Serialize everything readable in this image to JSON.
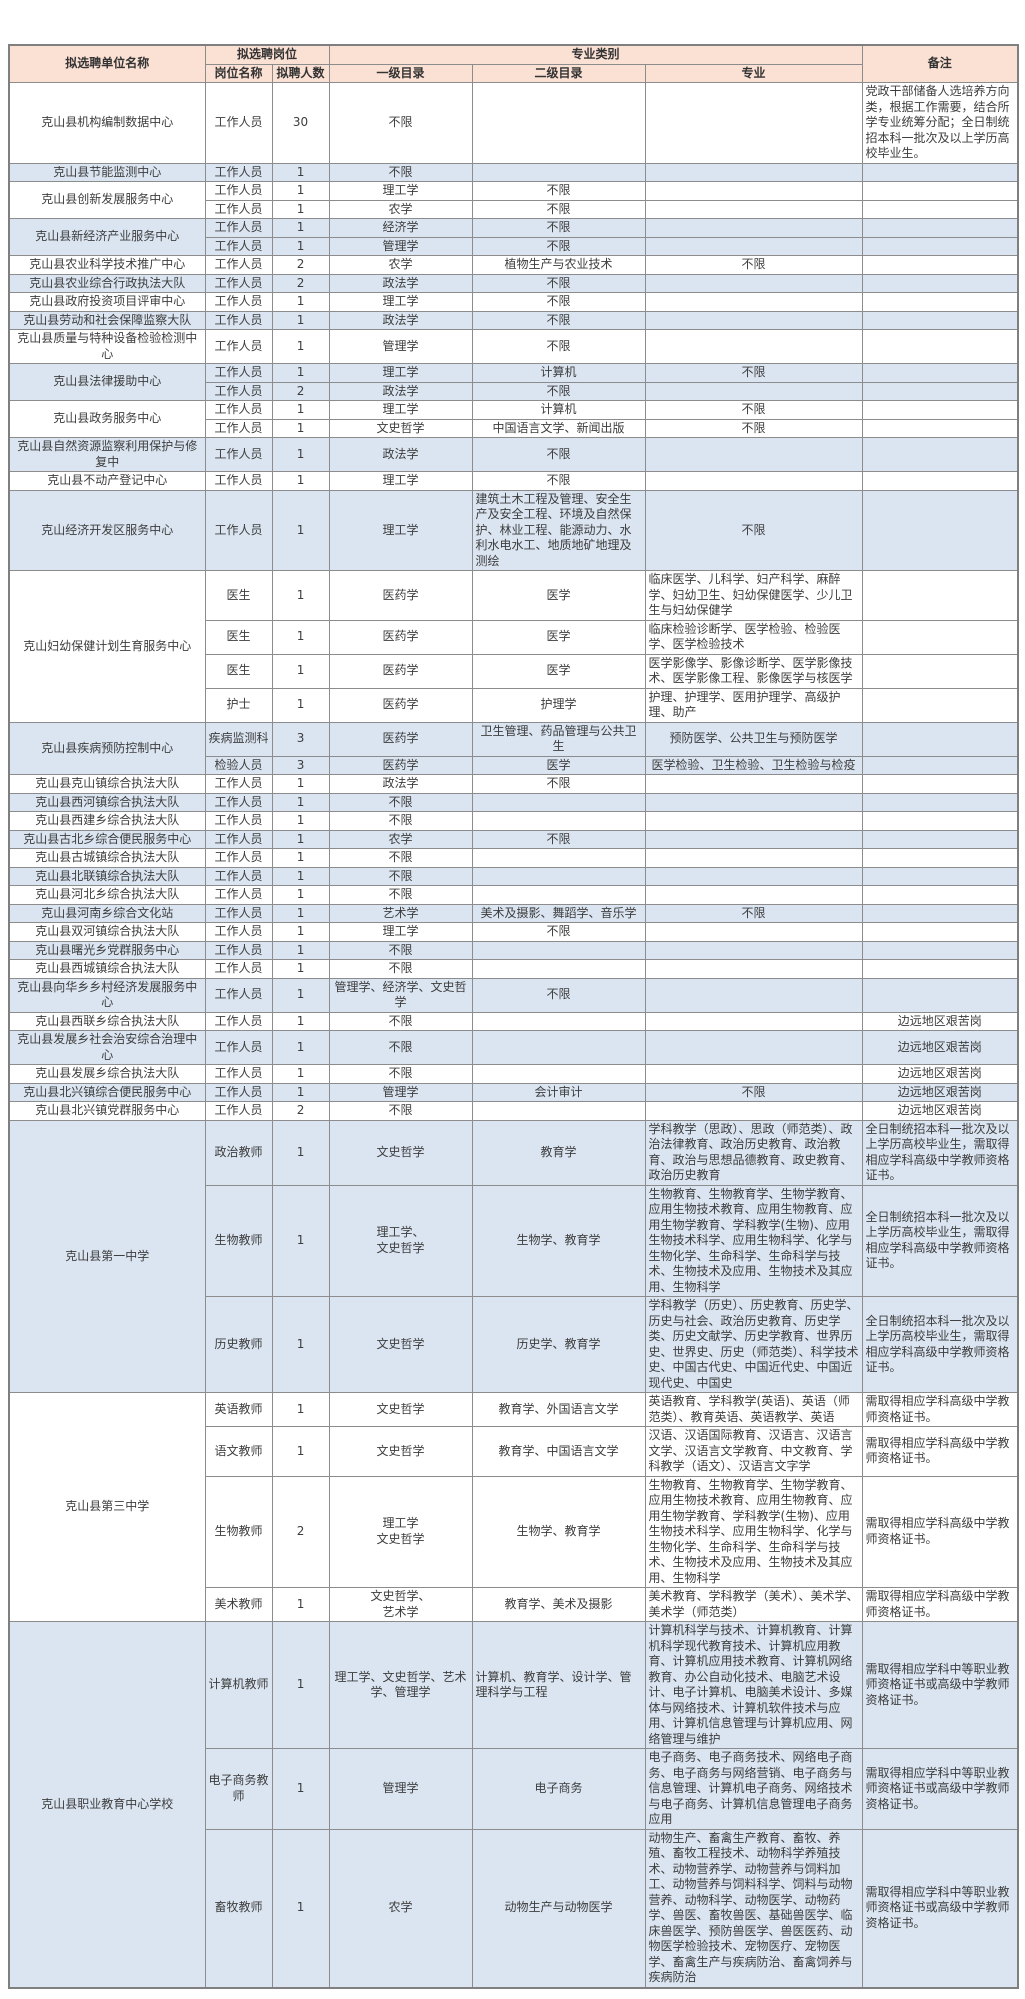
{
  "header": {
    "unit": "拟选聘单位名称",
    "position_group": "拟选聘岗位",
    "position_name": "岗位名称",
    "count": "拟聘人数",
    "major_group": "专业类别",
    "cat1": "一级目录",
    "cat2": "二级目录",
    "major": "专业",
    "remark": "备注"
  },
  "colors": {
    "header_bg": "#fbe0d4",
    "row_blue": "#dbe5f1",
    "row_white": "#ffffff",
    "border": "#8c8c8c",
    "text": "#3d3d3d"
  },
  "groups": [
    {
      "unit": "克山县机构编制数据中心",
      "shade": "white",
      "rows": [
        {
          "position": "工作人员",
          "count": "30",
          "cat1": "不限",
          "cat2": "",
          "major": "",
          "remark": "党政干部储备人选培养方向类，根据工作需要，结合所学专业统筹分配；全日制统招本科一批次及以上学历高校毕业生。"
        }
      ]
    },
    {
      "unit": "克山县节能监测中心",
      "shade": "blue",
      "rows": [
        {
          "position": "工作人员",
          "count": "1",
          "cat1": "不限",
          "cat2": "",
          "major": "",
          "remark": ""
        }
      ]
    },
    {
      "unit": "克山县创新发展服务中心",
      "shade": "white",
      "rows": [
        {
          "position": "工作人员",
          "count": "1",
          "cat1": "理工学",
          "cat2": "不限",
          "major": "",
          "remark": ""
        },
        {
          "position": "工作人员",
          "count": "1",
          "cat1": "农学",
          "cat2": "不限",
          "major": "",
          "remark": ""
        }
      ]
    },
    {
      "unit": "克山县新经济产业服务中心",
      "shade": "blue",
      "rows": [
        {
          "position": "工作人员",
          "count": "1",
          "cat1": "经济学",
          "cat2": "不限",
          "major": "",
          "remark": ""
        },
        {
          "position": "工作人员",
          "count": "1",
          "cat1": "管理学",
          "cat2": "不限",
          "major": "",
          "remark": ""
        }
      ]
    },
    {
      "unit": "克山县农业科学技术推广中心",
      "shade": "white",
      "rows": [
        {
          "position": "工作人员",
          "count": "2",
          "cat1": "农学",
          "cat2": "植物生产与农业技术",
          "major": "不限",
          "remark": ""
        }
      ]
    },
    {
      "unit": "克山县农业综合行政执法大队",
      "shade": "blue",
      "rows": [
        {
          "position": "工作人员",
          "count": "2",
          "cat1": "政法学",
          "cat2": "不限",
          "major": "",
          "remark": ""
        }
      ]
    },
    {
      "unit": "克山县政府投资项目评审中心",
      "shade": "white",
      "rows": [
        {
          "position": "工作人员",
          "count": "1",
          "cat1": "理工学",
          "cat2": "不限",
          "major": "",
          "remark": ""
        }
      ]
    },
    {
      "unit": "克山县劳动和社会保障监察大队",
      "shade": "blue",
      "rows": [
        {
          "position": "工作人员",
          "count": "1",
          "cat1": "政法学",
          "cat2": "不限",
          "major": "",
          "remark": ""
        }
      ]
    },
    {
      "unit": "克山县质量与特种设备检验检测中心",
      "shade": "white",
      "rows": [
        {
          "position": "工作人员",
          "count": "1",
          "cat1": "管理学",
          "cat2": "不限",
          "major": "",
          "remark": ""
        }
      ]
    },
    {
      "unit": "克山县法律援助中心",
      "shade": "blue",
      "rows": [
        {
          "position": "工作人员",
          "count": "1",
          "cat1": "理工学",
          "cat2": "计算机",
          "major": "不限",
          "remark": ""
        },
        {
          "position": "工作人员",
          "count": "2",
          "cat1": "政法学",
          "cat2": "不限",
          "major": "",
          "remark": ""
        }
      ]
    },
    {
      "unit": "克山县政务服务中心",
      "shade": "white",
      "rows": [
        {
          "position": "工作人员",
          "count": "1",
          "cat1": "理工学",
          "cat2": "计算机",
          "major": "不限",
          "remark": ""
        },
        {
          "position": "工作人员",
          "count": "1",
          "cat1": "文史哲学",
          "cat2": "中国语言文学、新闻出版",
          "major": "不限",
          "remark": ""
        }
      ]
    },
    {
      "unit": "克山县自然资源监察利用保护与修复中",
      "shade": "blue",
      "rows": [
        {
          "position": "工作人员",
          "count": "1",
          "cat1": "政法学",
          "cat2": "不限",
          "major": "",
          "remark": ""
        }
      ]
    },
    {
      "unit": "克山县不动产登记中心",
      "shade": "white",
      "rows": [
        {
          "position": "工作人员",
          "count": "1",
          "cat1": "理工学",
          "cat2": "不限",
          "major": "",
          "remark": ""
        }
      ]
    },
    {
      "unit": "克山经济开发区服务中心",
      "shade": "blue",
      "rows": [
        {
          "position": "工作人员",
          "count": "1",
          "cat1": "理工学",
          "cat2": "建筑土木工程及管理、安全生产及安全工程、环境及自然保护、林业工程、能源动力、水利水电水工、地质地矿地理及测绘",
          "major": "不限",
          "remark": ""
        }
      ]
    },
    {
      "unit": "克山妇幼保健计划生育服务中心",
      "shade": "white",
      "rows": [
        {
          "position": "医生",
          "count": "1",
          "cat1": "医药学",
          "cat2": "医学",
          "major": "临床医学、儿科学、妇产科学、麻醉学、妇幼卫生、妇幼保健医学、少儿卫生与妇幼保健学",
          "remark": ""
        },
        {
          "position": "医生",
          "count": "1",
          "cat1": "医药学",
          "cat2": "医学",
          "major": "临床检验诊断学、医学检验、检验医学、医学检验技术",
          "remark": ""
        },
        {
          "position": "医生",
          "count": "1",
          "cat1": "医药学",
          "cat2": "医学",
          "major": "医学影像学、影像诊断学、医学影像技术、医学影像工程、影像医学与核医学",
          "remark": ""
        },
        {
          "position": "护士",
          "count": "1",
          "cat1": "医药学",
          "cat2": "护理学",
          "major": "护理、护理学、医用护理学、高级护理、助产",
          "remark": ""
        }
      ]
    },
    {
      "unit": "克山县疾病预防控制中心",
      "shade": "blue",
      "rows": [
        {
          "position": "疾病监测科",
          "count": "3",
          "cat1": "医药学",
          "cat2": "卫生管理、药品管理与公共卫生",
          "major": "预防医学、公共卫生与预防医学",
          "remark": ""
        },
        {
          "position": "检验人员",
          "count": "3",
          "cat1": "医药学",
          "cat2": "医学",
          "major": "医学检验、卫生检验、卫生检验与检疫",
          "remark": ""
        }
      ]
    },
    {
      "unit": "克山县克山镇综合执法大队",
      "shade": "white",
      "rows": [
        {
          "position": "工作人员",
          "count": "1",
          "cat1": "政法学",
          "cat2": "不限",
          "major": "",
          "remark": ""
        }
      ]
    },
    {
      "unit": "克山县西河镇综合执法大队",
      "shade": "blue",
      "rows": [
        {
          "position": "工作人员",
          "count": "1",
          "cat1": "不限",
          "cat2": "",
          "major": "",
          "remark": ""
        }
      ]
    },
    {
      "unit": "克山县西建乡综合执法大队",
      "shade": "white",
      "rows": [
        {
          "position": "工作人员",
          "count": "1",
          "cat1": "不限",
          "cat2": "",
          "major": "",
          "remark": ""
        }
      ]
    },
    {
      "unit": "克山县古北乡综合便民服务中心",
      "shade": "blue",
      "rows": [
        {
          "position": "工作人员",
          "count": "1",
          "cat1": "农学",
          "cat2": "不限",
          "major": "",
          "remark": ""
        }
      ]
    },
    {
      "unit": "克山县古城镇综合执法大队",
      "shade": "white",
      "rows": [
        {
          "position": "工作人员",
          "count": "1",
          "cat1": "不限",
          "cat2": "",
          "major": "",
          "remark": ""
        }
      ]
    },
    {
      "unit": "克山县北联镇综合执法大队",
      "shade": "blue",
      "rows": [
        {
          "position": "工作人员",
          "count": "1",
          "cat1": "不限",
          "cat2": "",
          "major": "",
          "remark": ""
        }
      ]
    },
    {
      "unit": "克山县河北乡综合执法大队",
      "shade": "white",
      "rows": [
        {
          "position": "工作人员",
          "count": "1",
          "cat1": "不限",
          "cat2": "",
          "major": "",
          "remark": ""
        }
      ]
    },
    {
      "unit": "克山县河南乡综合文化站",
      "shade": "blue",
      "rows": [
        {
          "position": "工作人员",
          "count": "1",
          "cat1": "艺术学",
          "cat2": "美术及摄影、舞蹈学、音乐学",
          "major": "不限",
          "remark": ""
        }
      ]
    },
    {
      "unit": "克山县双河镇综合执法大队",
      "shade": "white",
      "rows": [
        {
          "position": "工作人员",
          "count": "1",
          "cat1": "理工学",
          "cat2": "不限",
          "major": "",
          "remark": ""
        }
      ]
    },
    {
      "unit": "克山县曙光乡党群服务中心",
      "shade": "blue",
      "rows": [
        {
          "position": "工作人员",
          "count": "1",
          "cat1": "不限",
          "cat2": "",
          "major": "",
          "remark": ""
        }
      ]
    },
    {
      "unit": "克山县西城镇综合执法大队",
      "shade": "white",
      "rows": [
        {
          "position": "工作人员",
          "count": "1",
          "cat1": "不限",
          "cat2": "",
          "major": "",
          "remark": ""
        }
      ]
    },
    {
      "unit": "克山县向华乡乡村经济发展服务中心",
      "shade": "blue",
      "rows": [
        {
          "position": "工作人员",
          "count": "1",
          "cat1": "管理学、经济学、文史哲学",
          "cat2": "不限",
          "major": "",
          "remark": ""
        }
      ]
    },
    {
      "unit": "克山县西联乡综合执法大队",
      "shade": "white",
      "rows": [
        {
          "position": "工作人员",
          "count": "1",
          "cat1": "不限",
          "cat2": "",
          "major": "",
          "remark": "边远地区艰苦岗"
        }
      ]
    },
    {
      "unit": "克山县发展乡社会治安综合治理中心",
      "shade": "blue",
      "rows": [
        {
          "position": "工作人员",
          "count": "1",
          "cat1": "不限",
          "cat2": "",
          "major": "",
          "remark": "边远地区艰苦岗"
        }
      ]
    },
    {
      "unit": "克山县发展乡综合执法大队",
      "shade": "white",
      "rows": [
        {
          "position": "工作人员",
          "count": "1",
          "cat1": "不限",
          "cat2": "",
          "major": "",
          "remark": "边远地区艰苦岗"
        }
      ]
    },
    {
      "unit": "克山县北兴镇综合便民服务中心",
      "shade": "blue",
      "rows": [
        {
          "position": "工作人员",
          "count": "1",
          "cat1": "管理学",
          "cat2": "会计审计",
          "major": "不限",
          "remark": "边远地区艰苦岗"
        }
      ]
    },
    {
      "unit": "克山县北兴镇党群服务中心",
      "shade": "white",
      "rows": [
        {
          "position": "工作人员",
          "count": "2",
          "cat1": "不限",
          "cat2": "",
          "major": "",
          "remark": "边远地区艰苦岗"
        }
      ]
    },
    {
      "unit": "克山县第一中学",
      "shade": "blue",
      "rows": [
        {
          "position": "政治教师",
          "count": "1",
          "cat1": "文史哲学",
          "cat2": "教育学",
          "major": "学科教学（思政）、思政（师范类）、政治法律教育、政治历史教育、政治教育、政治与思想品德教育、政史教育、政治历史教育",
          "remark": "全日制统招本科一批次及以上学历高校毕业生，需取得相应学科高级中学教师资格证书。"
        },
        {
          "position": "生物教师",
          "count": "1",
          "cat1": "理工学、\n文史哲学",
          "cat2": "生物学、教育学",
          "major": "生物教育、生物教育学、生物学教育、应用生物技术教育、应用生物教育、应用生物学教育、学科教学(生物)、应用生物技术科学、应用生物科学、化学与生物化学、生命科学、生命科学与技术、生物技术及应用、生物技术及其应用、生物科学",
          "remark": "全日制统招本科一批次及以上学历高校毕业生，需取得相应学科高级中学教师资格证书。"
        },
        {
          "position": "历史教师",
          "count": "1",
          "cat1": "文史哲学",
          "cat2": "历史学、教育学",
          "major": "学科教学（历史）、历史教育、历史学、历史与社会、政治历史教育、历史学类、历史文献学、历史学教育、世界历史、世界史、历史（师范类）、科学技术史、中国古代史、中国近代史、中国近现代史、中国史",
          "remark": "全日制统招本科一批次及以上学历高校毕业生，需取得相应学科高级中学教师资格证书。"
        }
      ]
    },
    {
      "unit": "克山县第三中学",
      "shade": "white",
      "rows": [
        {
          "position": "英语教师",
          "count": "1",
          "cat1": "文史哲学",
          "cat2": "教育学、外国语言文学",
          "major": "英语教育、学科教学(英语)、英语（师范类）、教育英语、英语教学、英语",
          "remark": "需取得相应学科高级中学教师资格证书。"
        },
        {
          "position": "语文教师",
          "count": "1",
          "cat1": "文史哲学",
          "cat2": "教育学、中国语言文学",
          "major": "汉语、汉语国际教育、汉语言、汉语言文学、汉语言文学教育、中文教育、学科教学（语文）、汉语言文字学",
          "remark": "需取得相应学科高级中学教师资格证书。"
        },
        {
          "position": "生物教师",
          "count": "2",
          "cat1": "理工学\n文史哲学",
          "cat2": "生物学、教育学",
          "major": "生物教育、生物教育学、生物学教育、应用生物技术教育、应用生物教育、应用生物学教育、学科教学(生物)、应用生物技术科学、应用生物科学、化学与生物化学、生命科学、生命科学与技术、生物技术及应用、生物技术及其应用、生物科学",
          "remark": "需取得相应学科高级中学教师资格证书。"
        },
        {
          "position": "美术教师",
          "count": "1",
          "cat1": "文史哲学、\n艺术学",
          "cat2": "教育学、美术及摄影",
          "major": "美术教育、学科教学（美术）、美术学、美术学（师范类）",
          "remark": "需取得相应学科高级中学教师资格证书。"
        }
      ]
    },
    {
      "unit": "克山县职业教育中心学校",
      "shade": "blue",
      "rows": [
        {
          "position": "计算机教师",
          "count": "1",
          "cat1": "理工学、文史哲学、艺术学、管理学",
          "cat2": "计算机、教育学、设计学、管理科学与工程",
          "major": "计算机科学与技术、计算机教育、计算机科学现代教育技术、计算机应用教育、计算机应用技术教育、计算机网络教育、办公自动化技术、电脑艺术设计、电子计算机、电脑美术设计、多媒体与网络技术、计算机软件技术与应用、计算机信息管理与计算机应用、网络管理与维护",
          "remark": "需取得相应学科中等职业教师资格证书或高级中学教师资格证书。"
        },
        {
          "position": "电子商务教师",
          "count": "1",
          "cat1": "管理学",
          "cat2": "电子商务",
          "major": "电子商务、电子商务技术、网络电子商务、电子商务与网络营销、电子商务与信息管理、计算机电子商务、网络技术与电子商务、计算机信息管理电子商务应用",
          "remark": "需取得相应学科中等职业教师资格证书或高级中学教师资格证书。"
        },
        {
          "position": "畜牧教师",
          "count": "1",
          "cat1": "农学",
          "cat2": "动物生产与动物医学",
          "major": "动物生产、畜禽生产教育、畜牧、养殖、畜牧工程技术、动物科学养殖技术、动物营养学、动物营养与饲料加工、动物营养与饲料科学、饲料与动物营养、动物科学、动物医学、动物药学、兽医、畜牧兽医、基础兽医学、临床兽医学、预防兽医学、兽医医药、动物医学检验技术、宠物医疗、宠物医学、畜禽生产与疾病防治、畜禽饲养与疾病防治",
          "remark": "需取得相应学科中等职业教师资格证书或高级中学教师资格证书。"
        }
      ]
    }
  ]
}
